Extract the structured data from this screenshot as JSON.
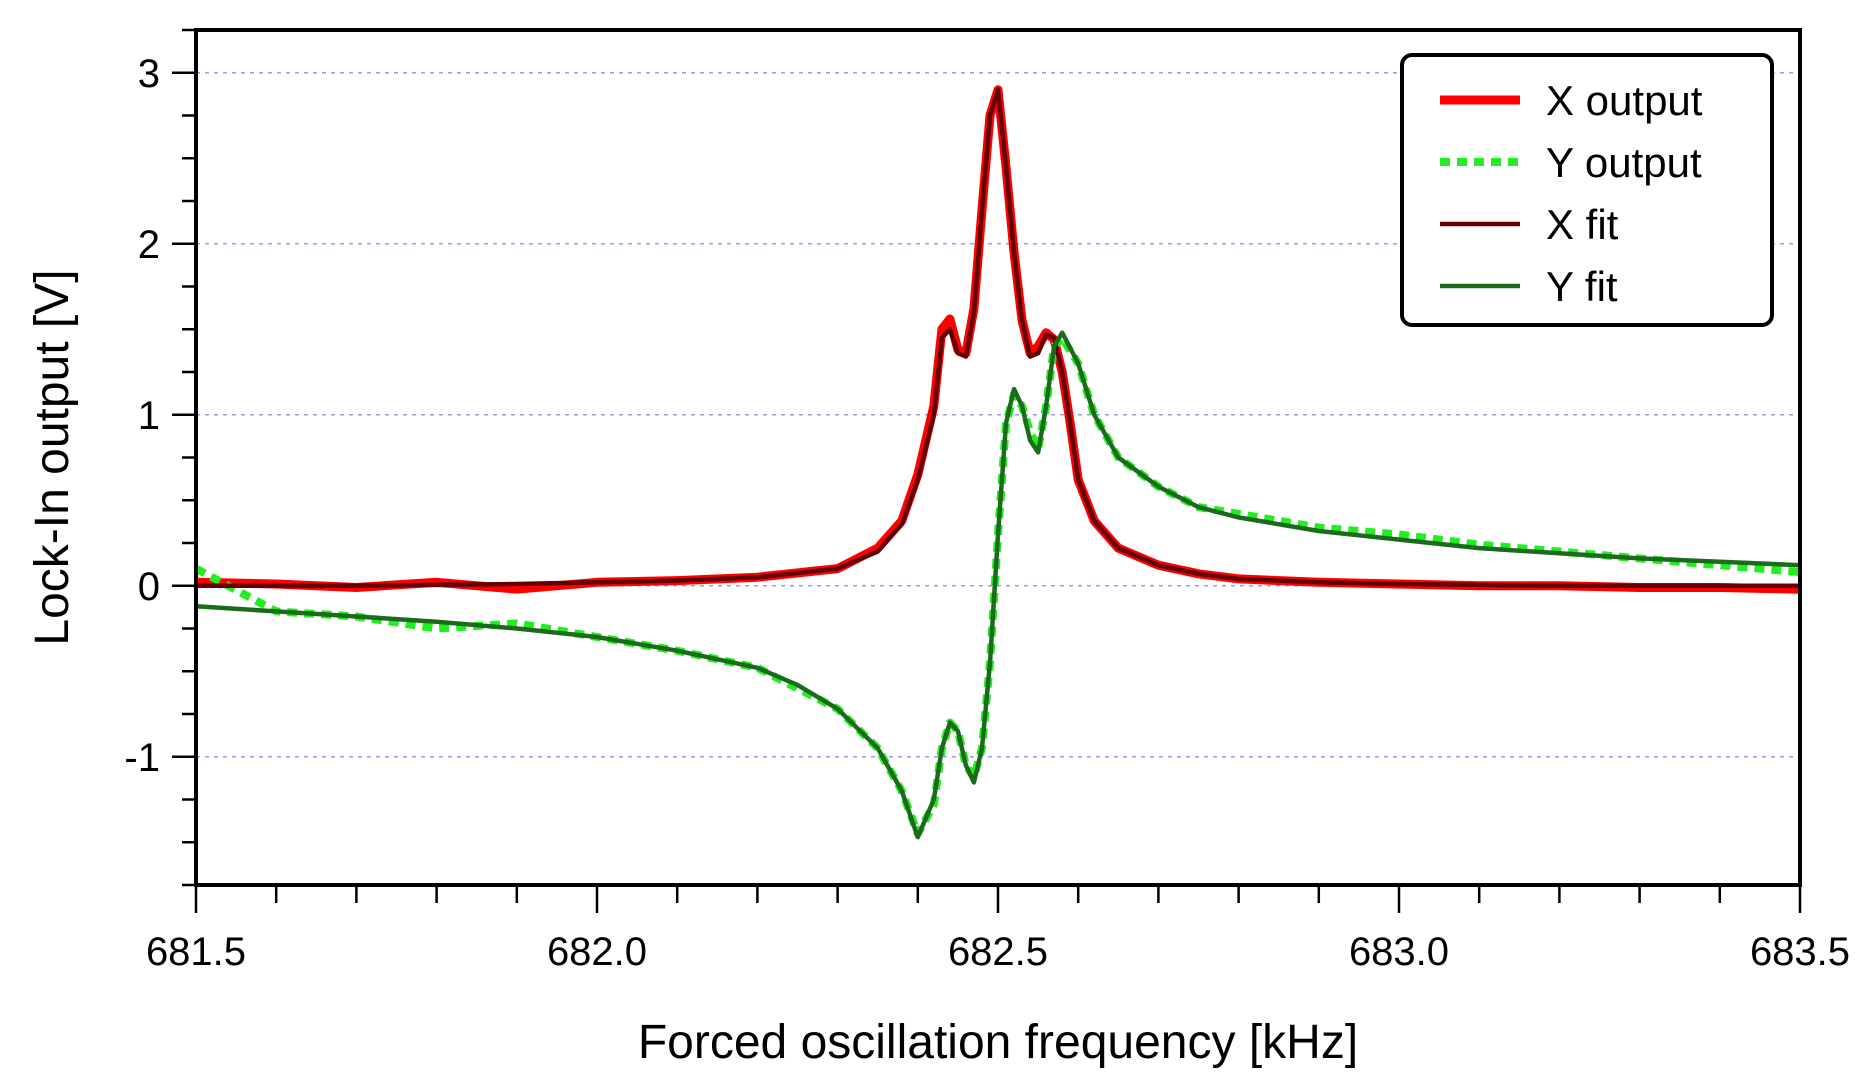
{
  "chart_data": {
    "type": "line",
    "xlabel": "Forced oscillation frequency [kHz]",
    "ylabel": "Lock-In output [V]",
    "xlim": [
      681.5,
      683.5
    ],
    "ylim": [
      -1.75,
      3.25
    ],
    "x_ticks": [
      681.5,
      682.0,
      682.5,
      683.0,
      683.5
    ],
    "x_tick_labels": [
      "681.5",
      "682.0",
      "682.5",
      "683.0",
      "683.5"
    ],
    "x_minor_step": 0.1,
    "y_ticks": [
      -1,
      0,
      1,
      2,
      3
    ],
    "y_tick_labels": [
      "-1",
      "0",
      "1",
      "2",
      "3"
    ],
    "y_minor_step": 0.25,
    "grid": "horizontal-dotted",
    "legend_position": "top-right",
    "series": [
      {
        "name": "X output",
        "style": "solid-thick",
        "color": "#ff0000",
        "x": [
          681.5,
          681.6,
          681.7,
          681.8,
          681.9,
          682.0,
          682.1,
          682.2,
          682.3,
          682.35,
          682.38,
          682.4,
          682.42,
          682.43,
          682.44,
          682.45,
          682.46,
          682.47,
          682.48,
          682.49,
          682.5,
          682.51,
          682.52,
          682.53,
          682.54,
          682.55,
          682.56,
          682.57,
          682.58,
          682.59,
          682.6,
          682.62,
          682.65,
          682.7,
          682.75,
          682.8,
          682.9,
          683.0,
          683.1,
          683.2,
          683.3,
          683.4,
          683.5
        ],
        "y": [
          0.02,
          0.01,
          -0.01,
          0.02,
          -0.02,
          0.02,
          0.03,
          0.05,
          0.1,
          0.22,
          0.38,
          0.65,
          1.05,
          1.5,
          1.56,
          1.38,
          1.36,
          1.62,
          2.2,
          2.75,
          2.9,
          2.45,
          1.95,
          1.55,
          1.36,
          1.4,
          1.48,
          1.44,
          1.25,
          0.95,
          0.62,
          0.38,
          0.22,
          0.12,
          0.07,
          0.04,
          0.02,
          0.01,
          0.0,
          0.0,
          -0.01,
          -0.01,
          -0.02
        ]
      },
      {
        "name": "Y output",
        "style": "dotted",
        "color": "#22ee22",
        "x": [
          681.5,
          681.6,
          681.7,
          681.8,
          681.9,
          682.0,
          682.1,
          682.2,
          682.25,
          682.3,
          682.35,
          682.38,
          682.4,
          682.42,
          682.43,
          682.44,
          682.45,
          682.46,
          682.47,
          682.48,
          682.49,
          682.5,
          682.51,
          682.52,
          682.53,
          682.54,
          682.55,
          682.56,
          682.57,
          682.58,
          682.6,
          682.62,
          682.65,
          682.7,
          682.75,
          682.8,
          682.9,
          683.0,
          683.1,
          683.2,
          683.3,
          683.4,
          683.5
        ],
        "y": [
          0.1,
          -0.15,
          -0.18,
          -0.25,
          -0.22,
          -0.3,
          -0.38,
          -0.48,
          -0.6,
          -0.72,
          -0.95,
          -1.2,
          -1.45,
          -1.28,
          -0.95,
          -0.8,
          -0.85,
          -1.05,
          -1.12,
          -0.95,
          -0.45,
          0.3,
          0.95,
          1.12,
          1.05,
          0.9,
          0.8,
          1.05,
          1.4,
          1.45,
          1.3,
          1.0,
          0.75,
          0.58,
          0.46,
          0.42,
          0.34,
          0.3,
          0.24,
          0.2,
          0.16,
          0.12,
          0.08
        ]
      },
      {
        "name": "X fit",
        "style": "solid",
        "color": "#660000",
        "x": [
          681.5,
          681.7,
          681.9,
          682.0,
          682.1,
          682.2,
          682.3,
          682.35,
          682.38,
          682.4,
          682.42,
          682.43,
          682.44,
          682.45,
          682.46,
          682.47,
          682.48,
          682.49,
          682.5,
          682.51,
          682.52,
          682.53,
          682.54,
          682.55,
          682.56,
          682.57,
          682.58,
          682.59,
          682.6,
          682.62,
          682.65,
          682.7,
          682.75,
          682.8,
          682.9,
          683.0,
          683.2,
          683.5
        ],
        "y": [
          0.0,
          0.0,
          0.01,
          0.02,
          0.03,
          0.05,
          0.1,
          0.2,
          0.36,
          0.62,
          1.0,
          1.45,
          1.5,
          1.36,
          1.34,
          1.6,
          2.2,
          2.75,
          2.9,
          2.45,
          1.95,
          1.55,
          1.34,
          1.36,
          1.47,
          1.45,
          1.25,
          0.95,
          0.62,
          0.38,
          0.22,
          0.12,
          0.07,
          0.04,
          0.02,
          0.01,
          0.0,
          0.0
        ]
      },
      {
        "name": "Y fit",
        "style": "solid",
        "color": "#1a6b1a",
        "x": [
          681.5,
          681.6,
          681.7,
          681.8,
          681.9,
          682.0,
          682.1,
          682.2,
          682.25,
          682.3,
          682.35,
          682.38,
          682.4,
          682.42,
          682.43,
          682.44,
          682.45,
          682.46,
          682.47,
          682.48,
          682.49,
          682.5,
          682.51,
          682.52,
          682.53,
          682.54,
          682.55,
          682.56,
          682.57,
          682.58,
          682.6,
          682.62,
          682.65,
          682.7,
          682.75,
          682.8,
          682.9,
          683.0,
          683.1,
          683.2,
          683.3,
          683.4,
          683.5
        ],
        "y": [
          -0.12,
          -0.15,
          -0.18,
          -0.21,
          -0.25,
          -0.3,
          -0.38,
          -0.48,
          -0.58,
          -0.72,
          -0.95,
          -1.2,
          -1.47,
          -1.25,
          -0.95,
          -0.8,
          -0.85,
          -1.05,
          -1.15,
          -0.95,
          -0.45,
          0.3,
          0.95,
          1.15,
          1.05,
          0.85,
          0.78,
          1.05,
          1.4,
          1.48,
          1.3,
          1.0,
          0.75,
          0.58,
          0.46,
          0.4,
          0.32,
          0.27,
          0.22,
          0.19,
          0.16,
          0.14,
          0.12
        ]
      }
    ]
  }
}
